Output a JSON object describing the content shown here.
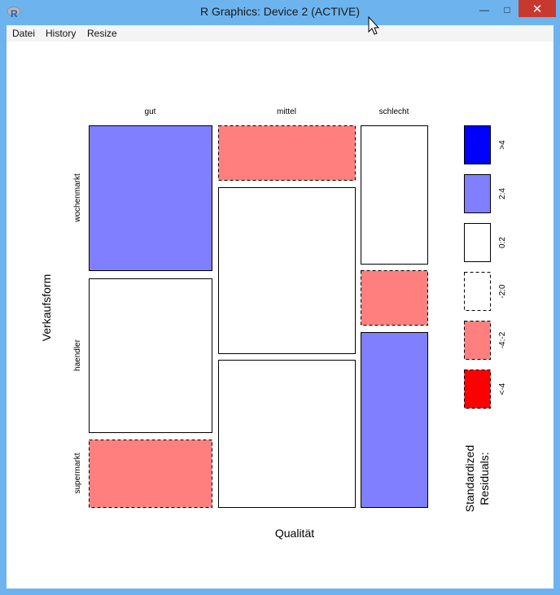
{
  "window": {
    "title": "R Graphics: Device 2 (ACTIVE)",
    "controls": {
      "minimize": "—",
      "maximize": "□",
      "close": "✕"
    }
  },
  "menu": [
    {
      "label": "Datei"
    },
    {
      "label": "History"
    },
    {
      "label": "Resize"
    }
  ],
  "chart_data": {
    "type": "mosaic",
    "xlabel": "Qualität",
    "ylabel": "Verkaufsform",
    "x_categories": [
      "gut",
      "mittel",
      "schlecht"
    ],
    "y_categories": [
      "wochenmarkt",
      "haendler",
      "supermarkt"
    ],
    "cells": [
      {
        "x": "gut",
        "y": "wochenmarkt",
        "residual_class": "2:4"
      },
      {
        "x": "gut",
        "y": "haendler",
        "residual_class": "0:2"
      },
      {
        "x": "gut",
        "y": "supermarkt",
        "residual_class": "-4:-2"
      },
      {
        "x": "mittel",
        "y": "wochenmarkt",
        "residual_class": "-4:-2"
      },
      {
        "x": "mittel",
        "y": "haendler",
        "residual_class": "0:2"
      },
      {
        "x": "mittel",
        "y": "supermarkt",
        "residual_class": "0:2"
      },
      {
        "x": "schlecht",
        "y": "wochenmarkt",
        "residual_class": "0:2"
      },
      {
        "x": "schlecht",
        "y": "haendler",
        "residual_class": "-4:-2"
      },
      {
        "x": "schlecht",
        "y": "supermarkt",
        "residual_class": "2:4"
      }
    ],
    "legend": {
      "title_line1": "Standardized",
      "title_line2": "Residuals:",
      "entries": [
        {
          "label": ">4",
          "color": "#0000ff",
          "dashed": false
        },
        {
          "label": "2:4",
          "color": "#7f7fff",
          "dashed": false
        },
        {
          "label": "0:2",
          "color": "#ffffff",
          "dashed": false
        },
        {
          "label": "-2:0",
          "color": "#ffffff",
          "dashed": true
        },
        {
          "label": "-4:-2",
          "color": "#ff7f7f",
          "dashed": true
        },
        {
          "label": "<-4",
          "color": "#ff0000",
          "dashed": true
        }
      ]
    }
  }
}
